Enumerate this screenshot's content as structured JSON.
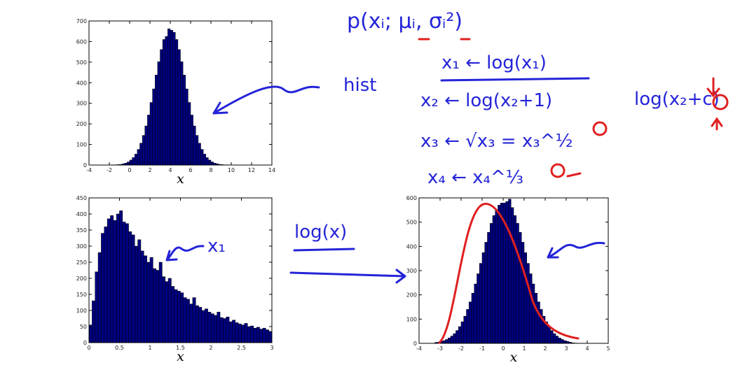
{
  "chart_data": [
    {
      "type": "histogram",
      "color": "#00007f",
      "x_label": "x",
      "xlim": [
        -4,
        14
      ],
      "xticks": [
        -4,
        -2,
        0,
        2,
        4,
        6,
        8,
        10,
        12,
        14
      ],
      "ylim": [
        0,
        700
      ],
      "yticks": [
        0,
        100,
        200,
        300,
        400,
        500,
        600,
        700
      ],
      "bins": [
        -2,
        -1.75,
        -1.5,
        -1.25,
        -1,
        -0.75,
        -0.5,
        -0.25,
        0,
        0.25,
        0.5,
        0.75,
        1,
        1.25,
        1.5,
        1.75,
        2,
        2.25,
        2.5,
        2.75,
        3,
        3.25,
        3.5,
        3.75,
        4,
        4.25,
        4.5,
        4.75,
        5,
        5.25,
        5.5,
        5.75,
        6,
        6.25,
        6.5,
        6.75,
        7,
        7.25,
        7.5,
        7.75,
        8,
        8.25,
        8.5,
        8.75,
        9,
        9.25,
        9.5,
        9.75,
        10
      ],
      "values": [
        0,
        1,
        1,
        2,
        3,
        6,
        9,
        15,
        24,
        36,
        53,
        76,
        106,
        144,
        190,
        243,
        304,
        370,
        437,
        502,
        561,
        610,
        625,
        662,
        655,
        645,
        610,
        561,
        502,
        437,
        370,
        304,
        243,
        190,
        144,
        106,
        76,
        53,
        36,
        24,
        15,
        9,
        6,
        3,
        2,
        1,
        1,
        0
      ]
    },
    {
      "type": "histogram",
      "color": "#00007f",
      "x_label": "x",
      "xlim": [
        0,
        3
      ],
      "xticks": [
        0,
        0.5,
        1,
        1.5,
        2,
        2.5,
        3
      ],
      "ylim": [
        0,
        450
      ],
      "yticks": [
        0,
        50,
        100,
        150,
        200,
        250,
        300,
        350,
        400,
        450
      ],
      "bins": [
        0,
        0.05,
        0.1,
        0.15,
        0.2,
        0.25,
        0.3,
        0.35,
        0.4,
        0.45,
        0.5,
        0.55,
        0.6,
        0.65,
        0.7,
        0.75,
        0.8,
        0.85,
        0.9,
        0.95,
        1,
        1.05,
        1.1,
        1.15,
        1.2,
        1.25,
        1.3,
        1.35,
        1.4,
        1.45,
        1.5,
        1.55,
        1.6,
        1.65,
        1.7,
        1.75,
        1.8,
        1.85,
        1.9,
        1.95,
        2,
        2.05,
        2.1,
        2.15,
        2.2,
        2.25,
        2.3,
        2.35,
        2.4,
        2.45,
        2.5,
        2.55,
        2.6,
        2.65,
        2.7,
        2.75,
        2.8,
        2.85,
        2.9,
        2.95,
        3
      ],
      "values": [
        55,
        130,
        220,
        280,
        340,
        360,
        385,
        395,
        380,
        400,
        410,
        375,
        370,
        345,
        335,
        300,
        320,
        285,
        270,
        250,
        265,
        230,
        225,
        250,
        205,
        190,
        200,
        175,
        165,
        160,
        155,
        140,
        135,
        120,
        140,
        115,
        110,
        100,
        105,
        95,
        90,
        85,
        95,
        78,
        75,
        80,
        65,
        70,
        62,
        58,
        55,
        60,
        50,
        52,
        45,
        48,
        42,
        45,
        40,
        35
      ]
    },
    {
      "type": "histogram",
      "color": "#00007f",
      "x_label": "x",
      "xlim": [
        -4,
        5
      ],
      "xticks": [
        -4,
        -3,
        -2,
        -1,
        0,
        1,
        2,
        3,
        4,
        5
      ],
      "ylim": [
        0,
        600
      ],
      "yticks": [
        0,
        100,
        200,
        300,
        400,
        500,
        600
      ],
      "bins": [
        -3.25,
        -3.125,
        -3,
        -2.875,
        -2.75,
        -2.625,
        -2.5,
        -2.375,
        -2.25,
        -2.125,
        -2,
        -1.875,
        -1.75,
        -1.625,
        -1.5,
        -1.375,
        -1.25,
        -1.125,
        -1,
        -0.875,
        -0.75,
        -0.625,
        -0.5,
        -0.375,
        -0.25,
        -0.125,
        0,
        0.125,
        0.25,
        0.375,
        0.5,
        0.625,
        0.75,
        0.875,
        1,
        1.125,
        1.25,
        1.375,
        1.5,
        1.625,
        1.75,
        1.875,
        2,
        2.125,
        2.25,
        2.375,
        2.5,
        2.625,
        2.75,
        2.875,
        3,
        3.125,
        3.25,
        3.375,
        3.5
      ],
      "values": [
        4,
        5,
        8,
        11,
        16,
        22,
        30,
        40,
        53,
        69,
        89,
        112,
        140,
        171,
        207,
        245,
        287,
        330,
        374,
        417,
        458,
        495,
        527,
        552,
        570,
        579,
        579,
        585,
        595,
        560,
        527,
        495,
        458,
        417,
        374,
        330,
        287,
        245,
        207,
        171,
        140,
        112,
        89,
        69,
        53,
        40,
        30,
        22,
        16,
        11,
        8,
        5,
        2,
        1
      ]
    }
  ],
  "annotations": {
    "hist": "hist",
    "x1": "x₁",
    "log_x": "log(x)",
    "density": "p(xᵢ; μᵢ, σᵢ²)",
    "t1": "x₁ ← log(x₁)",
    "t2": "x₂ ← log(x₂+1)",
    "t3": "x₃ ← √x₃ = x₃^½",
    "t4": "x₄ ← x₄^⅓",
    "t5": "log(x₂+c)"
  }
}
